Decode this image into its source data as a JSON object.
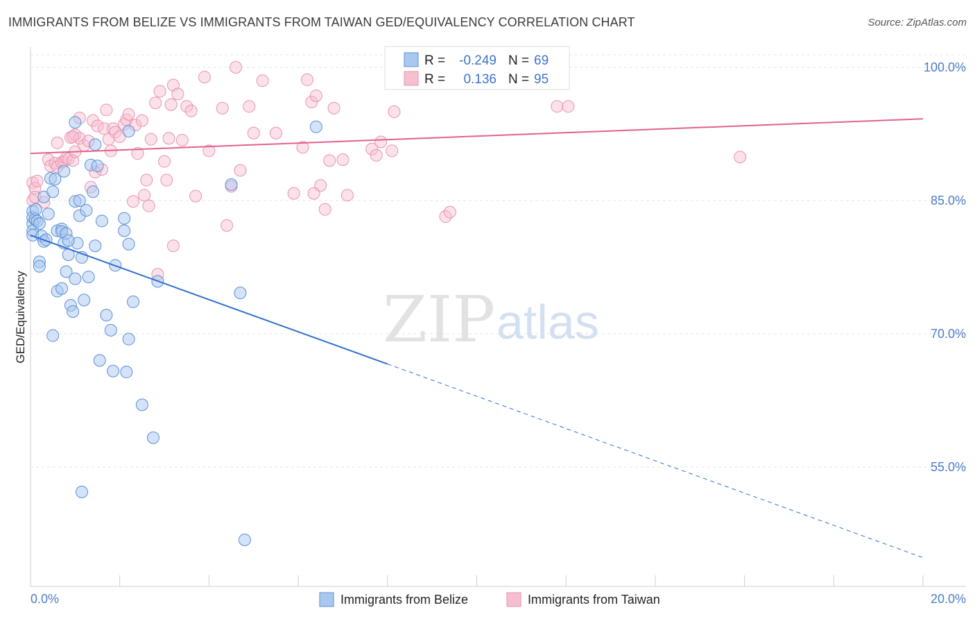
{
  "header": {
    "title": "IMMIGRANTS FROM BELIZE VS IMMIGRANTS FROM TAIWAN GED/EQUIVALENCY CORRELATION CHART",
    "source": "Source: ZipAtlas.com"
  },
  "watermark": {
    "zip": "ZIP",
    "atlas": "atlas"
  },
  "stats": {
    "r_label": "R =",
    "n_label": "N =",
    "belize": {
      "r": "-0.249",
      "n": "69"
    },
    "taiwan": {
      "r": "0.136",
      "n": "95"
    }
  },
  "colors": {
    "belize_fill": "#a9c8ef",
    "belize_stroke": "#5a8fd6",
    "belize_line": "#2f6fcf",
    "taiwan_fill": "#f6bfd0",
    "taiwan_stroke": "#e892ae",
    "taiwan_line": "#e2608c",
    "tick_text": "#4a7cc7"
  },
  "chart_data": {
    "type": "scatter",
    "title": "IMMIGRANTS FROM BELIZE VS IMMIGRANTS FROM TAIWAN GED/EQUIVALENCY CORRELATION CHART",
    "xlabel": "",
    "ylabel": "GED/Equivalency",
    "xlim": [
      0,
      20
    ],
    "ylim": [
      40.5,
      102.5
    ],
    "x_tick_labels": [
      "0.0%",
      "20.0%"
    ],
    "y_ticks": [
      {
        "value": 100,
        "label": "100.0%"
      },
      {
        "value": 85,
        "label": "85.0%"
      },
      {
        "value": 70,
        "label": "70.0%"
      },
      {
        "value": 55,
        "label": "55.0%"
      }
    ],
    "grid": true,
    "legend_position": "bottom",
    "series": [
      {
        "name": "Immigrants from Belize",
        "r": -0.249,
        "n": 69,
        "trend": {
          "x0": 0,
          "y0": 81.1,
          "x1": 8.0,
          "y1": 66.6,
          "dashed_to_x": 20,
          "dashed_to_y": 44.8
        },
        "points": [
          [
            0.05,
            83.8
          ],
          [
            0.05,
            83.1
          ],
          [
            0.05,
            82.4
          ],
          [
            0.05,
            81.6
          ],
          [
            0.05,
            81.1
          ],
          [
            0.1,
            82.9
          ],
          [
            0.12,
            84.0
          ],
          [
            0.15,
            82.7
          ],
          [
            0.2,
            82.4
          ],
          [
            0.25,
            81.0
          ],
          [
            0.3,
            80.4
          ],
          [
            0.35,
            80.6
          ],
          [
            0.2,
            78.1
          ],
          [
            0.2,
            77.6
          ],
          [
            0.3,
            85.4
          ],
          [
            0.4,
            83.5
          ],
          [
            0.45,
            87.5
          ],
          [
            0.5,
            86.0
          ],
          [
            0.55,
            87.4
          ],
          [
            0.6,
            81.6
          ],
          [
            0.7,
            81.8
          ],
          [
            0.7,
            81.5
          ],
          [
            0.75,
            80.2
          ],
          [
            0.8,
            81.3
          ],
          [
            0.8,
            77.0
          ],
          [
            0.85,
            78.9
          ],
          [
            0.9,
            73.2
          ],
          [
            0.95,
            72.5
          ],
          [
            1.0,
            76.2
          ],
          [
            1.0,
            84.9
          ],
          [
            1.05,
            80.2
          ],
          [
            1.1,
            83.3
          ],
          [
            1.1,
            85.0
          ],
          [
            1.15,
            78.6
          ],
          [
            1.2,
            73.8
          ],
          [
            1.25,
            83.9
          ],
          [
            1.3,
            76.4
          ],
          [
            1.35,
            89.0
          ],
          [
            1.4,
            86.0
          ],
          [
            1.45,
            79.9
          ],
          [
            1.5,
            88.9
          ],
          [
            1.55,
            67.0
          ],
          [
            1.6,
            82.7
          ],
          [
            1.7,
            72.1
          ],
          [
            1.8,
            70.4
          ],
          [
            1.85,
            65.8
          ],
          [
            1.9,
            77.7
          ],
          [
            2.1,
            81.6
          ],
          [
            2.1,
            83.0
          ],
          [
            2.2,
            92.8
          ],
          [
            2.15,
            65.7
          ],
          [
            2.2,
            69.4
          ],
          [
            2.3,
            73.6
          ],
          [
            2.5,
            62.0
          ],
          [
            2.75,
            58.3
          ],
          [
            2.85,
            75.9
          ],
          [
            2.2,
            80.1
          ],
          [
            4.5,
            86.8
          ],
          [
            4.7,
            74.6
          ],
          [
            4.8,
            46.8
          ],
          [
            6.4,
            93.3
          ],
          [
            0.6,
            74.8
          ],
          [
            0.7,
            75.1
          ],
          [
            0.5,
            69.8
          ],
          [
            1.15,
            52.2
          ],
          [
            0.85,
            80.5
          ],
          [
            1.0,
            93.8
          ],
          [
            1.45,
            91.3
          ],
          [
            0.75,
            88.3
          ]
        ]
      },
      {
        "name": "Immigrants from Taiwan",
        "r": 0.136,
        "n": 95,
        "trend": {
          "x0": 0,
          "y0": 90.3,
          "x1": 20,
          "y1": 94.2
        },
        "points": [
          [
            0.05,
            87.0
          ],
          [
            0.05,
            85.0
          ],
          [
            0.1,
            86.4
          ],
          [
            0.1,
            85.4
          ],
          [
            0.15,
            87.2
          ],
          [
            0.3,
            84.8
          ],
          [
            0.4,
            89.6
          ],
          [
            0.45,
            88.9
          ],
          [
            0.55,
            89.2
          ],
          [
            0.6,
            88.8
          ],
          [
            0.6,
            91.5
          ],
          [
            0.7,
            89.3
          ],
          [
            0.75,
            89.4
          ],
          [
            0.8,
            89.8
          ],
          [
            0.85,
            89.7
          ],
          [
            0.9,
            92.1
          ],
          [
            0.95,
            89.5
          ],
          [
            1.0,
            92.4
          ],
          [
            1.0,
            90.5
          ],
          [
            1.1,
            92.0
          ],
          [
            1.1,
            94.3
          ],
          [
            1.2,
            91.2
          ],
          [
            1.3,
            91.7
          ],
          [
            1.35,
            86.5
          ],
          [
            1.4,
            94.0
          ],
          [
            1.45,
            88.2
          ],
          [
            1.5,
            93.4
          ],
          [
            1.6,
            88.5
          ],
          [
            1.65,
            93.1
          ],
          [
            1.7,
            95.2
          ],
          [
            1.75,
            91.9
          ],
          [
            1.8,
            90.6
          ],
          [
            1.85,
            93.1
          ],
          [
            1.9,
            92.7
          ],
          [
            2.0,
            92.2
          ],
          [
            2.1,
            93.6
          ],
          [
            2.15,
            94.1
          ],
          [
            2.2,
            94.7
          ],
          [
            2.3,
            84.9
          ],
          [
            2.35,
            93.5
          ],
          [
            2.4,
            90.3
          ],
          [
            2.5,
            94.0
          ],
          [
            2.55,
            85.6
          ],
          [
            2.6,
            87.3
          ],
          [
            2.65,
            84.4
          ],
          [
            2.7,
            91.9
          ],
          [
            2.8,
            96.0
          ],
          [
            2.85,
            76.7
          ],
          [
            2.9,
            97.3
          ],
          [
            3.0,
            89.4
          ],
          [
            3.05,
            87.3
          ],
          [
            3.1,
            92.0
          ],
          [
            3.15,
            95.8
          ],
          [
            3.2,
            98.0
          ],
          [
            3.3,
            97.0
          ],
          [
            3.4,
            91.8
          ],
          [
            3.5,
            95.6
          ],
          [
            3.6,
            95.1
          ],
          [
            3.7,
            85.5
          ],
          [
            3.9,
            98.9
          ],
          [
            4.0,
            90.6
          ],
          [
            4.3,
            95.4
          ],
          [
            4.4,
            82.2
          ],
          [
            4.5,
            86.6
          ],
          [
            4.6,
            100.0
          ],
          [
            4.7,
            88.4
          ],
          [
            4.9,
            95.6
          ],
          [
            5.0,
            92.6
          ],
          [
            5.2,
            98.5
          ],
          [
            5.5,
            92.6
          ],
          [
            5.9,
            85.8
          ],
          [
            6.1,
            91.0
          ],
          [
            6.2,
            98.6
          ],
          [
            6.3,
            96.1
          ],
          [
            6.35,
            85.8
          ],
          [
            6.4,
            96.8
          ],
          [
            6.5,
            86.7
          ],
          [
            6.6,
            84.0
          ],
          [
            6.7,
            89.5
          ],
          [
            6.8,
            95.4
          ],
          [
            7.0,
            89.6
          ],
          [
            7.1,
            85.6
          ],
          [
            7.65,
            90.8
          ],
          [
            7.75,
            90.1
          ],
          [
            7.85,
            91.6
          ],
          [
            8.1,
            90.6
          ],
          [
            8.15,
            95.0
          ],
          [
            9.3,
            83.2
          ],
          [
            9.4,
            83.7
          ],
          [
            11.0,
            99.8
          ],
          [
            11.8,
            95.6
          ],
          [
            12.05,
            95.6
          ],
          [
            15.9,
            89.9
          ],
          [
            0.95,
            92.2
          ],
          [
            3.2,
            79.9
          ]
        ]
      }
    ]
  },
  "legend": {
    "items": [
      {
        "label": "Immigrants from Belize"
      },
      {
        "label": "Immigrants from Taiwan"
      }
    ]
  }
}
